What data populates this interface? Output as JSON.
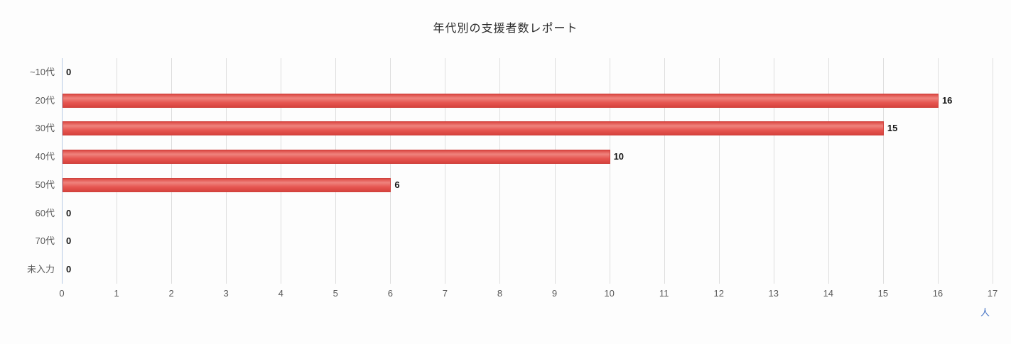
{
  "title": "年代別の支援者数レポート",
  "chart_data": {
    "type": "bar",
    "orientation": "horizontal",
    "title": "年代別の支援者数レポート",
    "categories": [
      "~10代",
      "20代",
      "30代",
      "40代",
      "50代",
      "60代",
      "70代",
      "未入力"
    ],
    "values": [
      0,
      16,
      15,
      10,
      6,
      0,
      0,
      0
    ],
    "xlabel": "人",
    "ylabel": "",
    "xlim": [
      0,
      17
    ],
    "x_ticks": [
      0,
      1,
      2,
      3,
      4,
      5,
      6,
      7,
      8,
      9,
      10,
      11,
      12,
      13,
      14,
      15,
      16,
      17
    ],
    "grid": true,
    "legend": false,
    "colors": {
      "bar": "#e4534e",
      "bar_highlight": "#ef837d",
      "grid": "#dedede",
      "axis": "#b7cbe4",
      "tick_label": "#595959",
      "value_label": "#151515",
      "unit_label": "#4472c4",
      "background": "#fdfdfd"
    }
  }
}
